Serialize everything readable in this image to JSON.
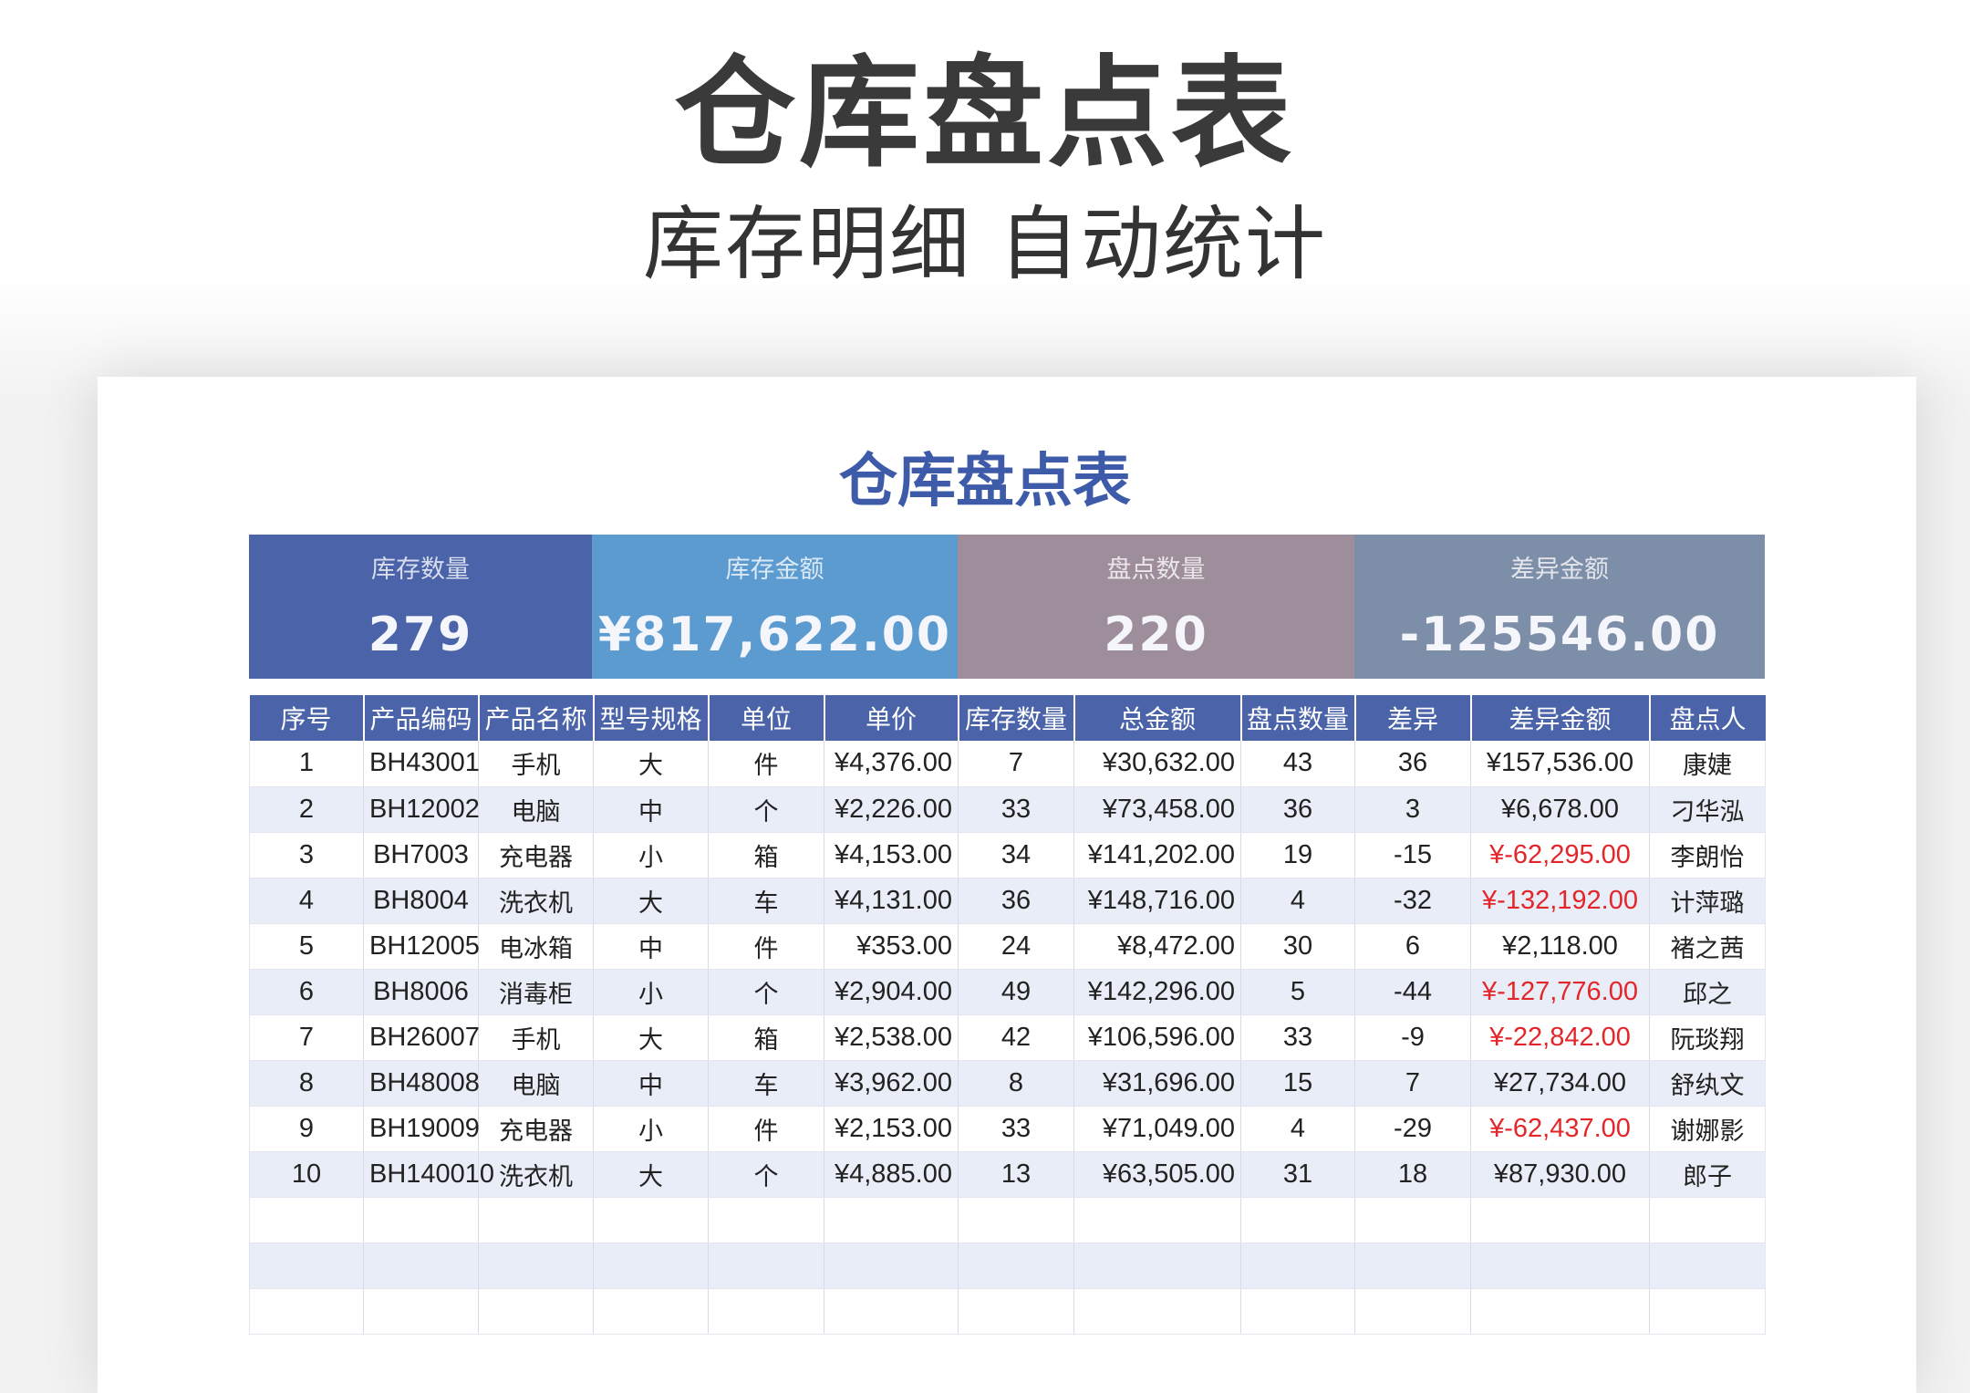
{
  "page": {
    "title": "仓库盘点表",
    "subtitle": "库存明细 自动统计"
  },
  "sheet": {
    "title": "仓库盘点表",
    "summary": [
      {
        "label": "库存数量",
        "value": "279",
        "color": "#4a63a9"
      },
      {
        "label": "库存金额",
        "value": "¥817,622.00",
        "color": "#5b9bd0"
      },
      {
        "label": "盘点数量",
        "value": "220",
        "color": "#9e8d9b"
      },
      {
        "label": "差异金额",
        "value": "-125546.00",
        "color": "#7d8ea8"
      }
    ],
    "columns": [
      "序号",
      "产品编码",
      "产品名称",
      "型号规格",
      "单位",
      "单价",
      "库存数量",
      "总金额",
      "盘点数量",
      "差异",
      "差异金额",
      "盘点人"
    ],
    "rows": [
      [
        "1",
        "BH43001",
        "手机",
        "大",
        "件",
        "¥4,376.00",
        "7",
        "¥30,632.00",
        "43",
        "36",
        "¥157,536.00",
        "康婕"
      ],
      [
        "2",
        "BH12002",
        "电脑",
        "中",
        "个",
        "¥2,226.00",
        "33",
        "¥73,458.00",
        "36",
        "3",
        "¥6,678.00",
        "刁华泓"
      ],
      [
        "3",
        "BH7003",
        "充电器",
        "小",
        "箱",
        "¥4,153.00",
        "34",
        "¥141,202.00",
        "19",
        "-15",
        "¥-62,295.00",
        "李朗怡"
      ],
      [
        "4",
        "BH8004",
        "洗衣机",
        "大",
        "车",
        "¥4,131.00",
        "36",
        "¥148,716.00",
        "4",
        "-32",
        "¥-132,192.00",
        "计萍璐"
      ],
      [
        "5",
        "BH12005",
        "电冰箱",
        "中",
        "件",
        "¥353.00",
        "24",
        "¥8,472.00",
        "30",
        "6",
        "¥2,118.00",
        "褚之茜"
      ],
      [
        "6",
        "BH8006",
        "消毒柜",
        "小",
        "个",
        "¥2,904.00",
        "49",
        "¥142,296.00",
        "5",
        "-44",
        "¥-127,776.00",
        "邱之"
      ],
      [
        "7",
        "BH26007",
        "手机",
        "大",
        "箱",
        "¥2,538.00",
        "42",
        "¥106,596.00",
        "33",
        "-9",
        "¥-22,842.00",
        "阮琰翔"
      ],
      [
        "8",
        "BH48008",
        "电脑",
        "中",
        "车",
        "¥3,962.00",
        "8",
        "¥31,696.00",
        "15",
        "7",
        "¥27,734.00",
        "舒纨文"
      ],
      [
        "9",
        "BH19009",
        "充电器",
        "小",
        "件",
        "¥2,153.00",
        "33",
        "¥71,049.00",
        "4",
        "-29",
        "¥-62,437.00",
        "谢娜影"
      ],
      [
        "10",
        "BH140010",
        "洗衣机",
        "大",
        "个",
        "¥4,885.00",
        "13",
        "¥63,505.00",
        "31",
        "18",
        "¥87,930.00",
        "郎子"
      ]
    ]
  },
  "colors": {
    "header": "#4a63a9",
    "alt_row": "#e9edf7",
    "negative": "#e3262a",
    "title_blue": "#3d5ba9"
  }
}
